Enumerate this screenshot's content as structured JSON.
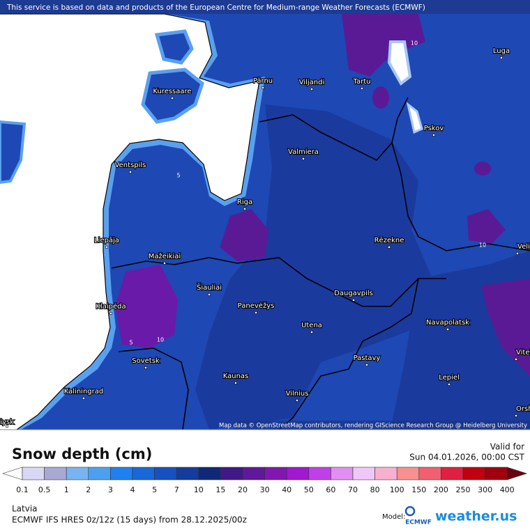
{
  "banner": "This service is based on data and products of the European Centre for Medium-range Weather Forecasts (ECMWF)",
  "attribution": "Map data © OpenStreetMap contributors, rendering GIScience Research Group @ Heidelberg University",
  "cities": [
    "Luga",
    "Pärnu",
    "Viljandi",
    "Tartu",
    "Kuressaare",
    "Pskov",
    "Valmiera",
    "Ventspils",
    "Riga",
    "Liepāja",
    "Rēzekne",
    "Mažeikiai",
    "Šiauliai",
    "Daugavpils",
    "Klaipėda",
    "Panevėžys",
    "Utena",
    "Navapolatsk",
    "Vitebsk",
    "Sovetsk",
    "Pastavy",
    "Kaunas",
    "Lepiel",
    "Kaliningrad",
    "Vilnius",
    "Orsha",
    "Velikiye Luki",
    "Baltiysk"
  ],
  "contour_labels": [
    10,
    5,
    10,
    10,
    5,
    2
  ],
  "legend": {
    "title": "Snow depth (cm)",
    "valid_label": "Valid for",
    "valid_time": "Sun 04.01.2026, 00:00 CST",
    "ticks": [
      0.1,
      0.5,
      1,
      2,
      3,
      4,
      5,
      7,
      10,
      15,
      20,
      30,
      40,
      50,
      60,
      70,
      80,
      100,
      150,
      200,
      250,
      300,
      400
    ],
    "colors": [
      "#d8d8f5",
      "#a8a8d2",
      "#78b4f0",
      "#4da0f0",
      "#2080f0",
      "#1868d8",
      "#1850c0",
      "#143c9c",
      "#102878",
      "#401888",
      "#60189a",
      "#8018b0",
      "#a018d0",
      "#c040e8",
      "#e090f0",
      "#f0c8f8",
      "#f8b0d0",
      "#f89090",
      "#f06070",
      "#e02040",
      "#c00010",
      "#a00010"
    ],
    "over_color": "#6a0010"
  },
  "footer": {
    "region": "Latvia",
    "model_run": "ECMWF IFS HRES 0z/12z (15 days) from 28.12.2025/00z",
    "model_label": "Model:",
    "ecmwf": "ECMWF",
    "brand": "weather.us"
  }
}
